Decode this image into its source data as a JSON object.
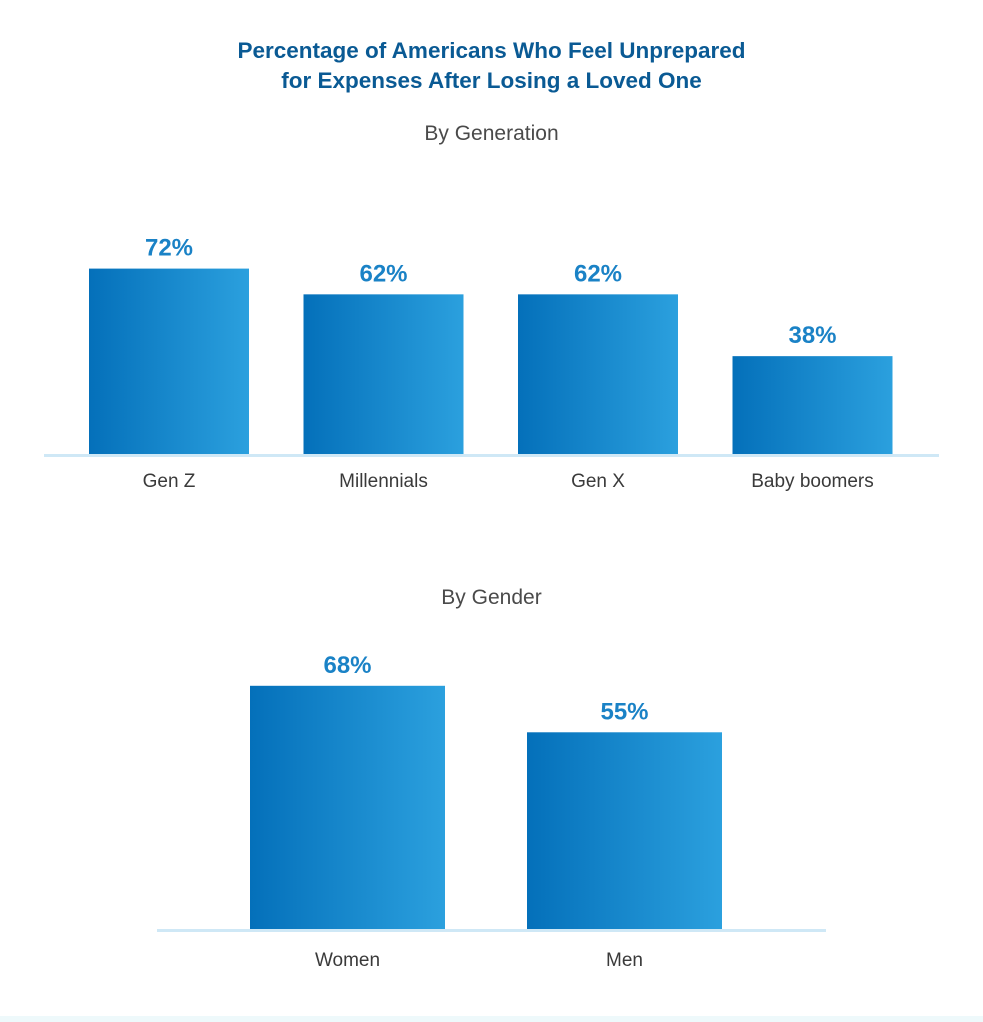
{
  "header": {
    "title_line1": "Percentage of Americans Who Feel Unprepared",
    "title_line2": "for Expenses After Losing a Loved One"
  },
  "colors": {
    "title": "#0a5a94",
    "bar_gradient_start": "#0470ba",
    "bar_gradient_end": "#2ba0de",
    "value_label": "#1a82c6",
    "baseline": "#cfe8f6",
    "category_label": "#3a3a3a"
  },
  "chart_data": [
    {
      "type": "bar",
      "title": "By Generation",
      "categories": [
        "Gen Z",
        "Millennials",
        "Gen X",
        "Baby boomers"
      ],
      "values": [
        72,
        62,
        62,
        38
      ],
      "value_labels": [
        "72%",
        "62%",
        "62%",
        "38%"
      ],
      "xlabel": "",
      "ylabel": "",
      "ylim": [
        0,
        100
      ],
      "grid": false,
      "legend": "none"
    },
    {
      "type": "bar",
      "title": "By Gender",
      "categories": [
        "Women",
        "Men"
      ],
      "values": [
        68,
        55
      ],
      "value_labels": [
        "68%",
        "55%"
      ],
      "xlabel": "",
      "ylabel": "",
      "ylim": [
        0,
        100
      ],
      "grid": false,
      "legend": "none"
    }
  ]
}
